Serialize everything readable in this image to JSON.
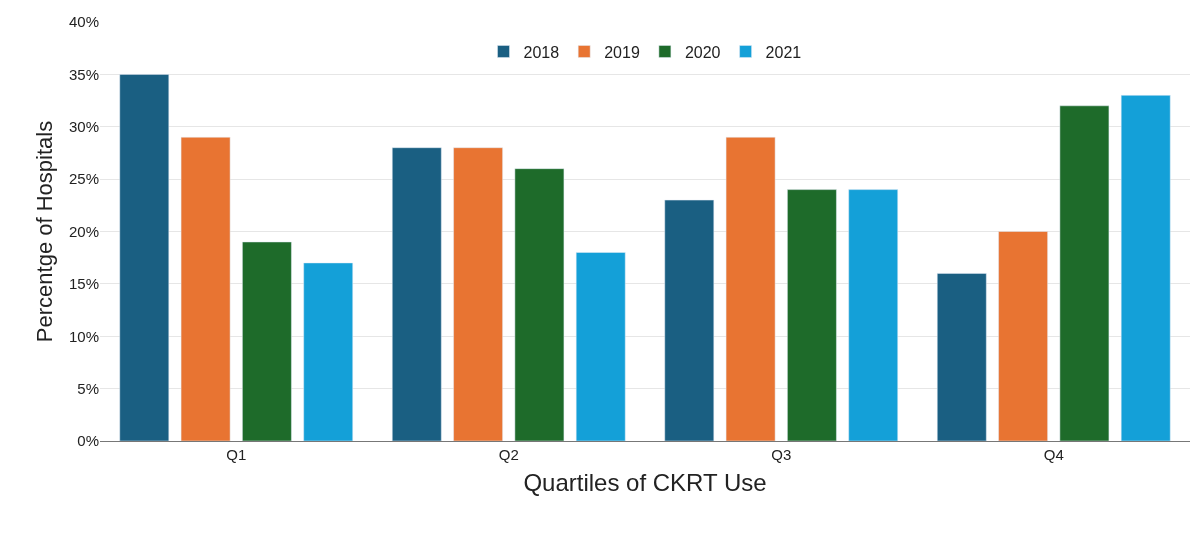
{
  "chart_data": {
    "type": "bar",
    "xlabel": "Quartiles of CKRT Use",
    "ylabel": "Percentge of Hospitals",
    "categories": [
      "Q1",
      "Q2",
      "Q3",
      "Q4"
    ],
    "series": [
      {
        "name": "2018",
        "color": "#1a5f82",
        "values": [
          35,
          28,
          23,
          16
        ]
      },
      {
        "name": "2019",
        "color": "#e87432",
        "values": [
          29,
          28,
          29,
          20
        ]
      },
      {
        "name": "2020",
        "color": "#1e6b2a",
        "values": [
          19,
          26,
          24,
          32
        ]
      },
      {
        "name": "2021",
        "color": "#14a0d8",
        "values": [
          17,
          18,
          24,
          33
        ]
      }
    ],
    "ylim": [
      0,
      40
    ],
    "yticks": [
      {
        "value": 0,
        "label": "0%"
      },
      {
        "value": 5,
        "label": "5%"
      },
      {
        "value": 10,
        "label": "10%"
      },
      {
        "value": 15,
        "label": "15%"
      },
      {
        "value": 20,
        "label": "20%"
      },
      {
        "value": 25,
        "label": "25%"
      },
      {
        "value": 30,
        "label": "30%"
      },
      {
        "value": 35,
        "label": "35%"
      },
      {
        "value": 40,
        "label": "40%"
      }
    ],
    "grid": "y",
    "legend": "top"
  }
}
